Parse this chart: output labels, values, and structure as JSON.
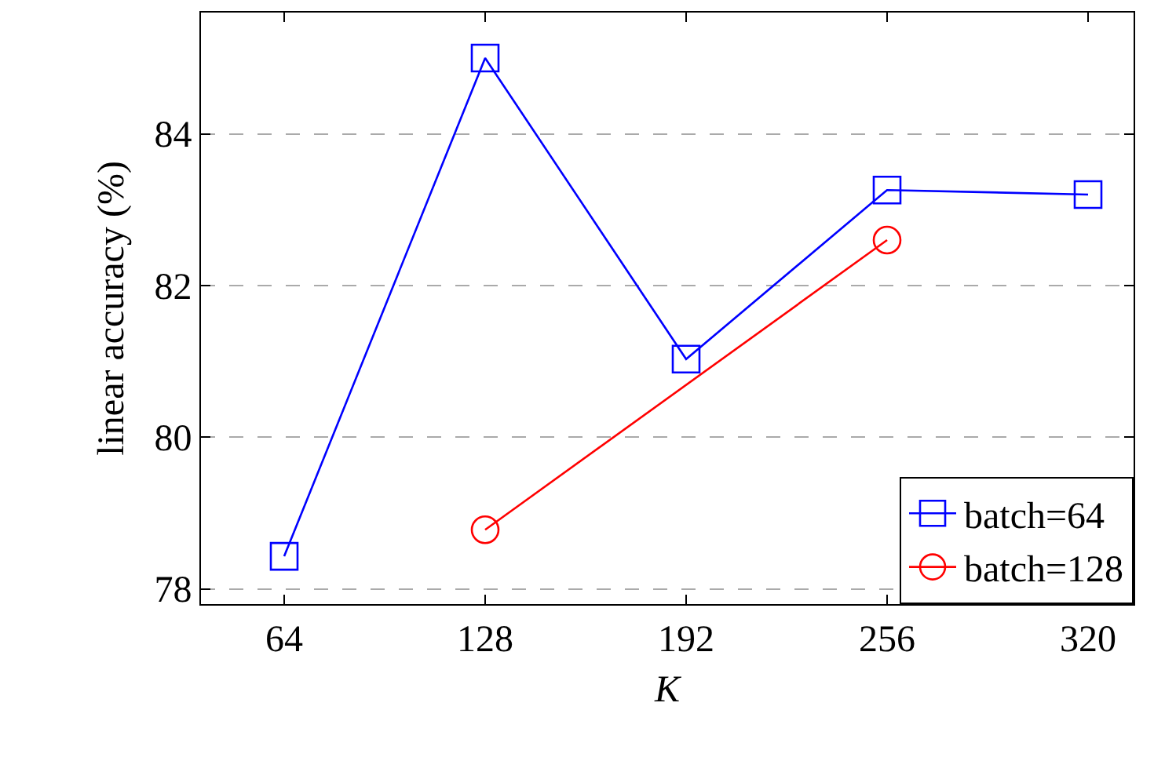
{
  "chart_data": {
    "type": "line",
    "xlabel": "K",
    "ylabel": "linear accuracy (%)",
    "x": [
      64,
      128,
      192,
      256,
      320
    ],
    "series": [
      {
        "name": "batch=64",
        "color": "#0000ff",
        "marker": "square",
        "values": [
          78.43,
          85.0,
          81.03,
          83.26,
          83.2
        ]
      },
      {
        "name": "batch=128",
        "color": "#ff0000",
        "marker": "circle",
        "values": [
          null,
          78.78,
          null,
          82.6,
          null
        ]
      }
    ],
    "xlim": [
      37.5,
      334.5
    ],
    "xticks": [
      64,
      128,
      192,
      256,
      320
    ],
    "ylim": [
      77.8,
      85.6
    ],
    "yticks": [
      78,
      80,
      82,
      84
    ],
    "grid": "y",
    "legend": "bottom right",
    "line_style": "solid"
  }
}
